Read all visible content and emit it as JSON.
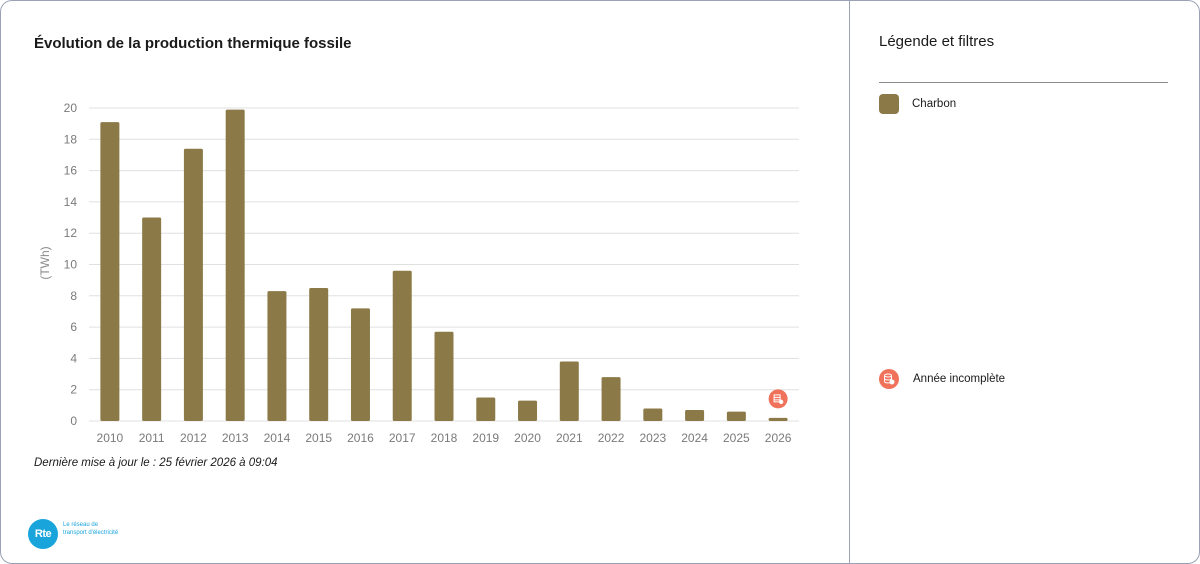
{
  "chart_data": {
    "type": "bar",
    "title": "Évolution de la production thermique fossile",
    "ylabel": "(TWh)",
    "xlabel": "",
    "ylim": [
      0,
      20
    ],
    "yticks": [
      0,
      2,
      4,
      6,
      8,
      10,
      12,
      14,
      16,
      18,
      20
    ],
    "categories": [
      "2010",
      "2011",
      "2012",
      "2013",
      "2014",
      "2015",
      "2016",
      "2017",
      "2018",
      "2019",
      "2020",
      "2021",
      "2022",
      "2023",
      "2024",
      "2025",
      "2026"
    ],
    "series": [
      {
        "name": "Charbon",
        "values": [
          19.1,
          13.0,
          17.4,
          19.9,
          8.3,
          8.5,
          7.2,
          9.6,
          5.7,
          1.5,
          1.3,
          3.8,
          2.8,
          0.8,
          0.7,
          0.6,
          0.2
        ],
        "color": "#8b7a47"
      }
    ],
    "incomplete_categories": [
      "2026"
    ],
    "grid": true,
    "legend_position": "right"
  },
  "footer": {
    "last_update": "Dernière mise à jour le : 25 février 2026 à 09:04"
  },
  "logo": {
    "mark": "Rte",
    "text": "Le réseau de transport d'électricité"
  },
  "sidebar": {
    "title": "Légende et filtres",
    "legend_items": [
      {
        "label": "Charbon",
        "color": "#8b7a47"
      }
    ],
    "incomplete_label": "Année incomplète",
    "incomplete_color": "#f0725b"
  }
}
